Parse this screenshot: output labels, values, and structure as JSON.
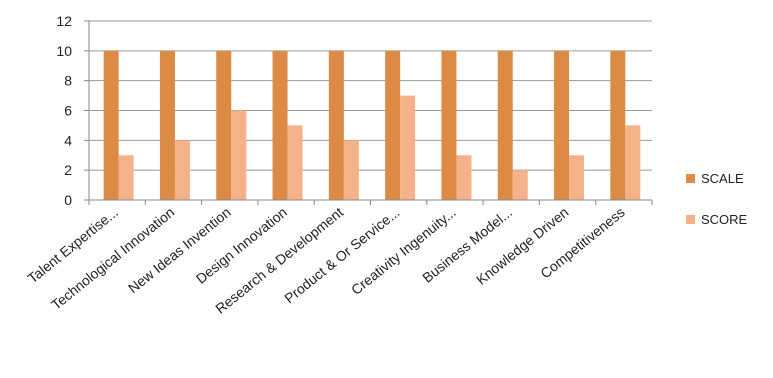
{
  "chart_data": {
    "type": "bar",
    "categories": [
      "Talent Expertise...",
      "Technological Innovation",
      "New Ideas Invention",
      "Design Innovation",
      "Research & Development",
      "Product & Or Service...",
      "Creativity Ingenuity...",
      "Business Model...",
      "Knowledge Driven",
      "Competitiveness"
    ],
    "series": [
      {
        "name": "SCALE",
        "color": "#DB8B45",
        "values": [
          10,
          10,
          10,
          10,
          10,
          10,
          10,
          10,
          10,
          10
        ]
      },
      {
        "name": "SCORE",
        "color": "#F5B28A",
        "values": [
          3,
          4,
          6,
          5,
          4,
          7,
          3,
          2,
          3,
          5
        ]
      }
    ],
    "title": "",
    "xlabel": "",
    "ylabel": "",
    "ylim": [
      0,
      12
    ],
    "yticks": [
      0,
      2,
      4,
      6,
      8,
      10,
      12
    ],
    "grid": true,
    "legend": "right"
  },
  "colors": {
    "gridline": "#9a9a9a",
    "axis": "#8a8a8a"
  }
}
